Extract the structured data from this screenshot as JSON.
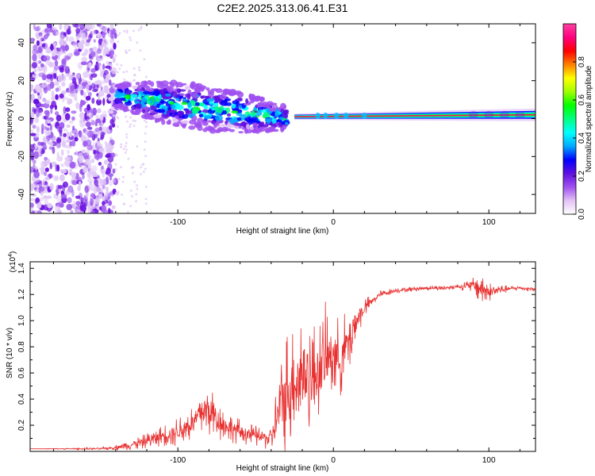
{
  "title": "C2E2.2025.313.06.41.E31",
  "chart_data": [
    {
      "type": "heatmap",
      "name": "spectrogram",
      "xlabel": "Height of straight line (km)",
      "ylabel": "Frequency (Hz)",
      "xlim": [
        -195,
        130
      ],
      "ylim": [
        -50,
        50
      ],
      "xticks": [
        -100,
        0,
        100
      ],
      "xtick_labels": [
        "-100",
        "0",
        "100"
      ],
      "yticks": [
        -40,
        -20,
        0,
        20,
        40
      ],
      "ytick_labels": [
        "-40",
        "-20",
        "0",
        "20",
        "40"
      ],
      "colorbar": {
        "label": "Normalized spectral amplitude",
        "range": [
          0,
          1
        ],
        "ticks": [
          0.0,
          0.2,
          0.4,
          0.6,
          0.8
        ],
        "tick_labels": [
          "0.0",
          "0.2",
          "0.4",
          "0.6",
          "0.8"
        ],
        "colors": [
          "#ffffff",
          "#e3c2f5",
          "#a050f0",
          "#6010e0",
          "#0000ff",
          "#00aaff",
          "#00ffff",
          "#00ff80",
          "#00ff00",
          "#a0ff00",
          "#ffff00",
          "#ff8000",
          "#ff0000",
          "#ff0080",
          "#ff40a0"
        ]
      },
      "features": [
        {
          "region": "scattered noise",
          "x": [
            -195,
            -140
          ],
          "y": [
            -50,
            50
          ],
          "amplitude": 0.15
        },
        {
          "region": "descending band",
          "x": [
            -140,
            -30
          ],
          "center_y": [
            12,
            0
          ],
          "amplitude": 0.45
        },
        {
          "region": "flat line",
          "x": [
            -25,
            130
          ],
          "center_y": [
            1,
            2
          ],
          "amplitude": 0.9
        }
      ]
    },
    {
      "type": "line",
      "name": "snr",
      "xlabel": "Height of straight line (km)",
      "ylabel": "SNR (10 * v/v)",
      "exponent_label": "(x10",
      "exponent_value": "4",
      "exponent_close": ")",
      "xlim": [
        -195,
        130
      ],
      "ylim": [
        0,
        1.45
      ],
      "xticks": [
        -100,
        0,
        100
      ],
      "xtick_labels": [
        "-100",
        "0",
        "100"
      ],
      "yticks": [
        0.2,
        0.4,
        0.6,
        0.8,
        1.0,
        1.2,
        1.4
      ],
      "ytick_labels": [
        "0.2",
        "0.4",
        "0.6",
        "0.8",
        "1.0",
        "1.2",
        "1.4"
      ],
      "series": [
        {
          "name": "SNR",
          "color": "#e83030",
          "x": [
            -195,
            -150,
            -140,
            -130,
            -120,
            -110,
            -100,
            -90,
            -85,
            -80,
            -75,
            -70,
            -60,
            -50,
            -40,
            -35,
            -30,
            -25,
            -20,
            -15,
            -10,
            -5,
            0,
            5,
            10,
            15,
            20,
            25,
            30,
            40,
            50,
            60,
            70,
            80,
            90,
            95,
            100,
            110,
            120,
            130
          ],
          "y": [
            0.02,
            0.02,
            0.03,
            0.05,
            0.08,
            0.12,
            0.15,
            0.22,
            0.3,
            0.32,
            0.25,
            0.2,
            0.15,
            0.12,
            0.1,
            0.3,
            0.45,
            0.55,
            0.6,
            0.55,
            0.6,
            0.7,
            0.75,
            0.7,
            0.85,
            1.0,
            1.1,
            1.15,
            1.2,
            1.23,
            1.24,
            1.25,
            1.25,
            1.26,
            1.27,
            1.25,
            1.22,
            1.24,
            1.25,
            1.24
          ],
          "spread": [
            0.0,
            0.01,
            0.02,
            0.04,
            0.06,
            0.08,
            0.12,
            0.15,
            0.2,
            0.22,
            0.18,
            0.12,
            0.1,
            0.08,
            0.1,
            0.35,
            0.5,
            0.4,
            0.55,
            0.45,
            0.4,
            0.45,
            0.35,
            0.3,
            0.3,
            0.15,
            0.08,
            0.04,
            0.03,
            0.02,
            0.02,
            0.02,
            0.02,
            0.02,
            0.06,
            0.15,
            0.08,
            0.03,
            0.02,
            0.02
          ]
        }
      ]
    }
  ]
}
